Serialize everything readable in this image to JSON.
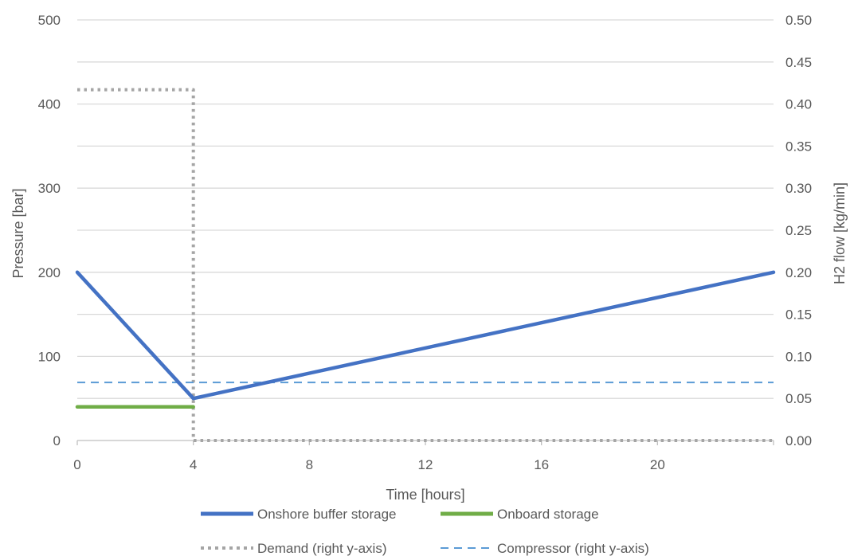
{
  "chart_data": {
    "type": "line",
    "xlabel": "Time [hours]",
    "ylabel_left": "Pressure [bar]",
    "ylabel_right": "H2 flow [kg/min]",
    "xlim": [
      0,
      24
    ],
    "ylim_left": [
      0,
      500
    ],
    "ylim_right": [
      0,
      0.5
    ],
    "x_ticks": [
      "0",
      "4",
      "8",
      "12",
      "16",
      "20"
    ],
    "x_tick_values": [
      0,
      4,
      8,
      12,
      16,
      20
    ],
    "y_left_ticks": [
      "0",
      "100",
      "200",
      "300",
      "400",
      "500"
    ],
    "y_left_tick_values": [
      0,
      100,
      200,
      300,
      400,
      500
    ],
    "y_right_ticks": [
      "0.00",
      "0.05",
      "0.10",
      "0.15",
      "0.20",
      "0.25",
      "0.30",
      "0.35",
      "0.40",
      "0.45",
      "0.50"
    ],
    "y_right_tick_values": [
      0,
      0.05,
      0.1,
      0.15,
      0.2,
      0.25,
      0.3,
      0.35,
      0.4,
      0.45,
      0.5
    ],
    "grid": true,
    "legend_position": "bottom",
    "series": [
      {
        "name": "Onshore buffer storage",
        "axis": "left",
        "style": "solid",
        "color": "#4472C4",
        "x": [
          0,
          4,
          24
        ],
        "y": [
          200,
          50,
          200
        ]
      },
      {
        "name": "Onboard storage",
        "axis": "left",
        "style": "solid",
        "color": "#70AD47",
        "x": [
          0,
          4
        ],
        "y": [
          40,
          40
        ]
      },
      {
        "name": "Demand (right y-axis)",
        "axis": "right",
        "style": "dotted",
        "color": "#A5A5A5",
        "x": [
          0,
          4,
          4,
          24
        ],
        "y": [
          0.417,
          0.417,
          0,
          0
        ]
      },
      {
        "name": "Compressor (right y-axis)",
        "axis": "right",
        "style": "dashed",
        "color": "#5B9BD5",
        "x": [
          0,
          24
        ],
        "y": [
          0.069,
          0.069
        ]
      }
    ]
  }
}
